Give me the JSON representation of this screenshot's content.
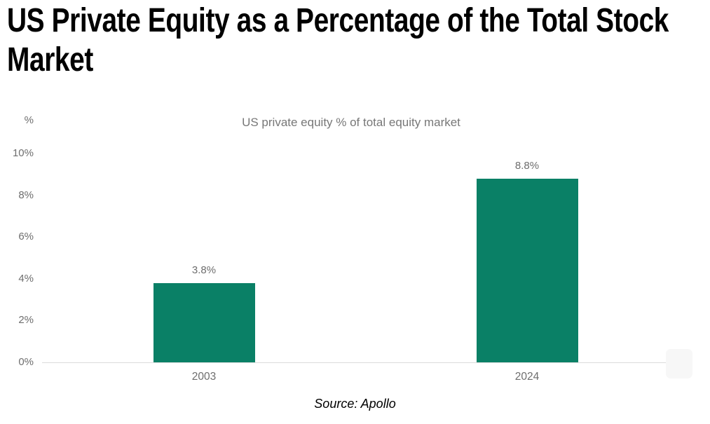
{
  "page": {
    "title": "US Private Equity as a Percentage of the Total Stock Market",
    "source": "Source: Apollo"
  },
  "chart_data": {
    "type": "bar",
    "title": "US private equity % of total equity market",
    "categories": [
      "2003",
      "2024"
    ],
    "values": [
      3.8,
      8.8
    ],
    "value_labels": [
      "3.8%",
      "8.8%"
    ],
    "y_axis_unit": "%",
    "y_ticks": [
      {
        "label": "0%",
        "value": 0
      },
      {
        "label": "2%",
        "value": 2
      },
      {
        "label": "4%",
        "value": 4
      },
      {
        "label": "6%",
        "value": 6
      },
      {
        "label": "8%",
        "value": 8
      },
      {
        "label": "10%",
        "value": 10
      }
    ],
    "ylim": [
      0,
      10
    ],
    "grid": false,
    "legend": "none",
    "bar_color": "#0A8066",
    "label_color": "#6E6E6E",
    "axis_line_color": "#DCDCDC"
  }
}
